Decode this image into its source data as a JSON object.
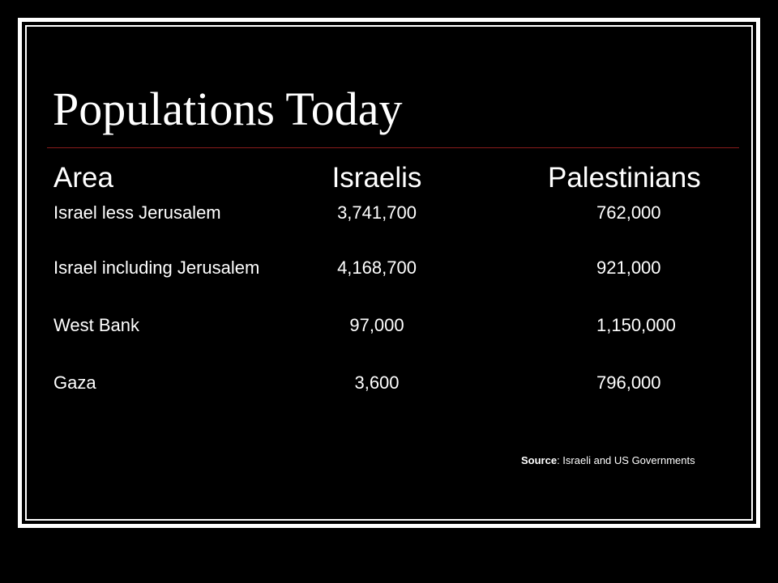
{
  "slide": {
    "title": "Populations Today"
  },
  "table": {
    "headers": [
      "Area",
      "Israelis",
      "Palestinians"
    ],
    "rows": [
      [
        "Israel less Jerusalem",
        "3,741,700",
        "762,000"
      ],
      [
        "Israel including Jerusalem",
        "4,168,700",
        "921,000"
      ],
      [
        "West Bank",
        "97,000",
        "1,150,000"
      ],
      [
        "Gaza",
        "3,600",
        "796,000"
      ]
    ]
  },
  "source": {
    "label": "Source",
    "text": ": Israeli and US Governments"
  },
  "colors": {
    "background": "#000000",
    "text": "#ffffff",
    "title_rule": "#8a1c1c"
  }
}
